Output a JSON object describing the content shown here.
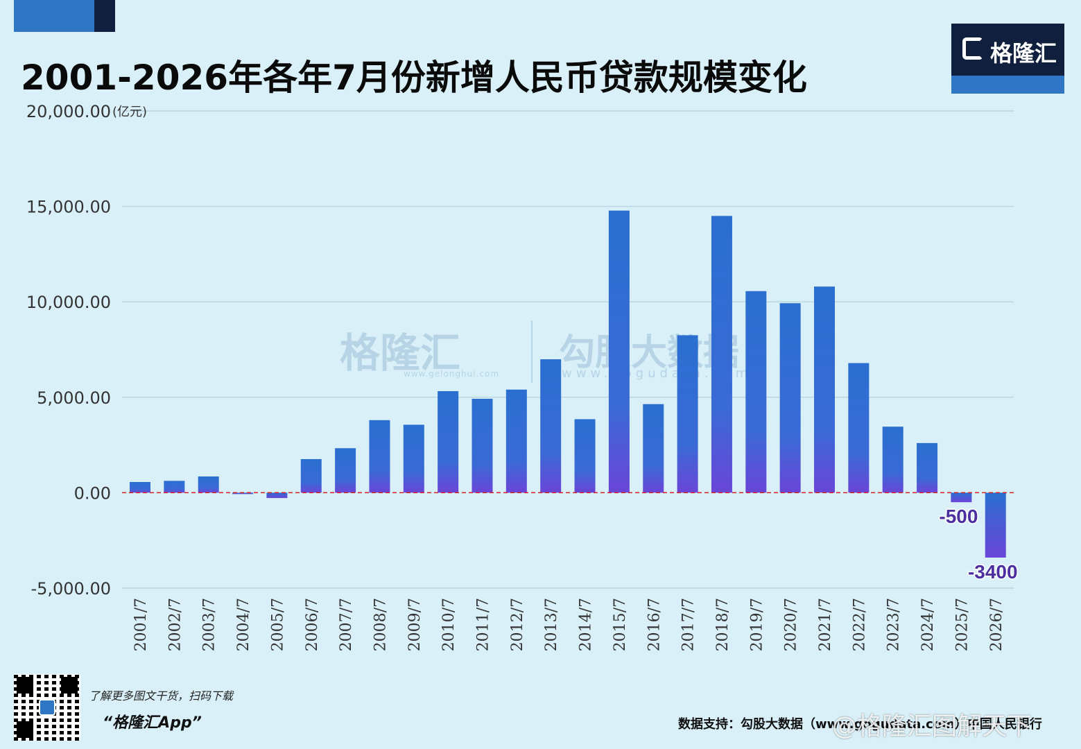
{
  "header": {
    "title": "2001-2026年各年7月份新增人民币贷款规模变化",
    "brand": "格隆汇"
  },
  "watermark": {
    "brand": "格隆汇",
    "brand_url": "www.gelonghui.com",
    "data_brand": "勾股大数据",
    "data_url": "www.gogudata.com"
  },
  "footer": {
    "promo_line": "了解更多图文干货，扫码下载",
    "app_name": "“格隆汇App”",
    "source": "数据支持：勾股大数据（www.gogudata.com）中国人民银行",
    "weibo": "@格隆汇图解天下"
  },
  "chart_data": {
    "type": "bar",
    "title": "2001-2026年各年7月份新增人民币贷款规模变化",
    "unit": "(亿元)",
    "ylim": [
      -5000,
      20000
    ],
    "yticks": [
      "20,000.00",
      "15,000.00",
      "10,000.00",
      "5,000.00",
      "0.00",
      "-5,000.00"
    ],
    "categories": [
      "2001/7",
      "2002/7",
      "2003/7",
      "2004/7",
      "2005/7",
      "2006/7",
      "2007/7",
      "2008/7",
      "2009/7",
      "2010/7",
      "2011/7",
      "2012/7",
      "2013/7",
      "2014/7",
      "2015/7",
      "2016/7",
      "2017/7",
      "2018/7",
      "2019/7",
      "2020/7",
      "2021/7",
      "2022/7",
      "2023/7",
      "2024/7",
      "2025/7",
      "2026/7"
    ],
    "values": [
      560,
      620,
      850,
      -50,
      -280,
      1760,
      2330,
      3800,
      3560,
      5320,
      4920,
      5400,
      6990,
      3850,
      14780,
      4640,
      8250,
      14500,
      10560,
      9927,
      10800,
      6790,
      3459,
      2600,
      -500,
      -3400
    ],
    "data_labels": [
      {
        "index": 24,
        "text": "-500"
      },
      {
        "index": 25,
        "text": "-3400"
      }
    ],
    "colors": {
      "bar_top": "#2a6fd0",
      "bar_bottom": "#6a45d8",
      "zero_line": "#d62020",
      "grid": "#b9d6e2",
      "label": "#4b2fa0"
    },
    "grid": true,
    "legend": "none"
  }
}
